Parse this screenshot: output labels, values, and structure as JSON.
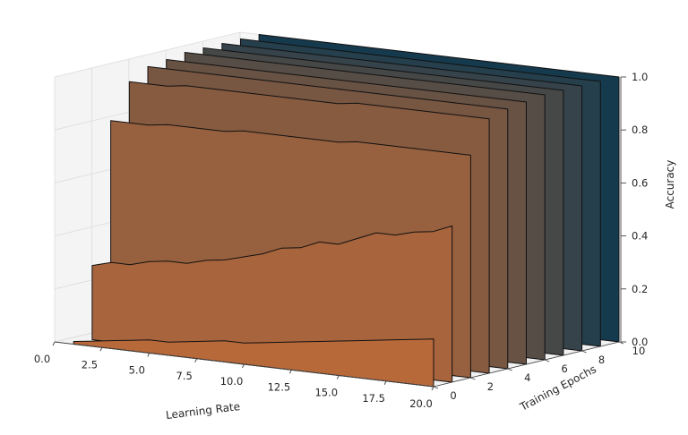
{
  "chart_data": {
    "type": "3d-area",
    "title": "",
    "xlabel": "Learning Rate",
    "ylabel": "Training Epochs",
    "zlabel": "Accuracy",
    "xlim": [
      0,
      20
    ],
    "ylim": [
      0,
      10
    ],
    "zlim": [
      0,
      1
    ],
    "x_ticks": [
      "0.0",
      "2.5",
      "5.0",
      "7.5",
      "10.0",
      "12.5",
      "15.0",
      "17.5",
      "20.0"
    ],
    "y_ticks": [
      "0",
      "2",
      "4",
      "6",
      "8",
      "10"
    ],
    "z_ticks": [
      "0.0",
      "0.2",
      "0.4",
      "0.6",
      "0.8",
      "1.0"
    ],
    "grid": true,
    "x": [
      1,
      2,
      3,
      4,
      5,
      6,
      7,
      8,
      9,
      10,
      11,
      12,
      13,
      14,
      15,
      16,
      17,
      18,
      19,
      20
    ],
    "epochs": [
      0,
      1,
      2,
      3,
      4,
      5,
      6,
      7,
      8,
      9,
      10
    ],
    "series": [
      {
        "epoch": 0,
        "values": [
          0.01,
          0.02,
          0.03,
          0.04,
          0.05,
          0.05,
          0.06,
          0.07,
          0.08,
          0.08,
          0.09,
          0.1,
          0.11,
          0.12,
          0.13,
          0.14,
          0.15,
          0.16,
          0.17,
          0.18
        ]
      },
      {
        "epoch": 1,
        "values": [
          0.28,
          0.3,
          0.3,
          0.32,
          0.33,
          0.33,
          0.35,
          0.36,
          0.38,
          0.4,
          0.43,
          0.44,
          0.47,
          0.47,
          0.5,
          0.53,
          0.53,
          0.55,
          0.56,
          0.59
        ]
      },
      {
        "epoch": 2,
        "values": [
          0.81,
          0.81,
          0.81,
          0.82,
          0.82,
          0.82,
          0.82,
          0.83,
          0.83,
          0.83,
          0.83,
          0.83,
          0.83,
          0.84,
          0.84,
          0.84,
          0.84,
          0.84,
          0.84,
          0.84
        ]
      },
      {
        "epoch": 3,
        "values": [
          0.94,
          0.94,
          0.94,
          0.95,
          0.95,
          0.95,
          0.95,
          0.95,
          0.95,
          0.95,
          0.95,
          0.95,
          0.96,
          0.96,
          0.96,
          0.96,
          0.96,
          0.96,
          0.96,
          0.96
        ]
      },
      {
        "epoch": 4,
        "values": [
          0.98,
          0.98,
          0.98,
          0.98,
          0.98,
          0.98,
          0.98,
          0.98,
          0.98,
          0.98,
          0.98,
          0.98,
          0.98,
          0.98,
          0.98,
          0.98,
          0.98,
          0.98,
          0.98,
          0.98
        ]
      },
      {
        "epoch": 5,
        "values": [
          0.99,
          0.99,
          0.99,
          0.99,
          0.99,
          0.99,
          0.99,
          0.99,
          0.99,
          0.99,
          0.99,
          0.99,
          0.99,
          0.99,
          0.99,
          0.99,
          0.99,
          0.99,
          0.99,
          0.99
        ]
      },
      {
        "epoch": 6,
        "values": [
          1.0,
          1.0,
          1.0,
          1.0,
          1.0,
          1.0,
          1.0,
          1.0,
          1.0,
          1.0,
          1.0,
          1.0,
          1.0,
          1.0,
          1.0,
          1.0,
          1.0,
          1.0,
          1.0,
          1.0
        ]
      },
      {
        "epoch": 7,
        "values": [
          1.0,
          1.0,
          1.0,
          1.0,
          1.0,
          1.0,
          1.0,
          1.0,
          1.0,
          1.0,
          1.0,
          1.0,
          1.0,
          1.0,
          1.0,
          1.0,
          1.0,
          1.0,
          1.0,
          1.0
        ]
      },
      {
        "epoch": 8,
        "values": [
          1.0,
          1.0,
          1.0,
          1.0,
          1.0,
          1.0,
          1.0,
          1.0,
          1.0,
          1.0,
          1.0,
          1.0,
          1.0,
          1.0,
          1.0,
          1.0,
          1.0,
          1.0,
          1.0,
          1.0
        ]
      },
      {
        "epoch": 9,
        "values": [
          1.0,
          1.0,
          1.0,
          1.0,
          1.0,
          1.0,
          1.0,
          1.0,
          1.0,
          1.0,
          1.0,
          1.0,
          1.0,
          1.0,
          1.0,
          1.0,
          1.0,
          1.0,
          1.0,
          1.0
        ]
      },
      {
        "epoch": 10,
        "values": [
          1.0,
          1.0,
          1.0,
          1.0,
          1.0,
          1.0,
          1.0,
          1.0,
          1.0,
          1.0,
          1.0,
          1.0,
          1.0,
          1.0,
          1.0,
          1.0,
          1.0,
          1.0,
          1.0,
          1.0
        ]
      }
    ],
    "colormap_colors": [
      "#b8693a",
      "#153a4e"
    ]
  }
}
